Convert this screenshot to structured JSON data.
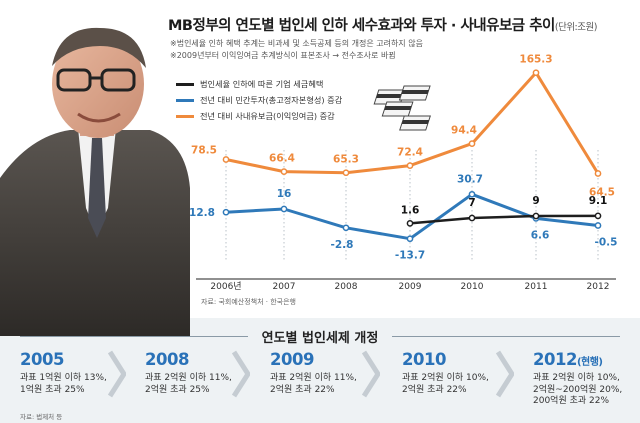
{
  "title": "MB정부의 연도별 법인세 인하 세수효과와 투자 · 사내유보금 추이",
  "title_unit": "(단위:조원)",
  "notes": [
    "※법인세율 인하 혜택 추계는 비과세 및 소득공제 등의 개정은 고려하지 않음",
    "※2009년부터 이익잉여금 추계방식이 표본조사 → 전수조사로 바뀜"
  ],
  "legend": [
    {
      "label": "법인세율 인하에 따른 기업 세금혜택",
      "color": "#1e1e1e"
    },
    {
      "label": "전년 대비 민간투자(총고정자본형성) 증감",
      "color": "#2f79b9"
    },
    {
      "label": "전년 대비 사내유보금(이익잉여금) 증감",
      "color": "#ef8a3c"
    }
  ],
  "source_chart": "자료: 국회예산정책처 · 한국은행",
  "chart_data": {
    "type": "line",
    "x": [
      "2006년",
      "2007",
      "2008",
      "2009",
      "2010",
      "2011",
      "2012"
    ],
    "series": [
      {
        "name": "전년 대비 사내유보금(이익잉여금) 증감",
        "color": "#ef8a3c",
        "x": [
          "2006년",
          "2007",
          "2008",
          "2009",
          "2010",
          "2011",
          "2012"
        ],
        "values": [
          78.5,
          66.4,
          65.3,
          72.4,
          94.4,
          165.3,
          64.5
        ],
        "labels": [
          "78.5",
          "66.4",
          "65.3",
          "72.4",
          "94.4",
          "165.3",
          "64.5"
        ]
      },
      {
        "name": "전년 대비 민간투자(총고정자본형성) 증감",
        "color": "#2f79b9",
        "x": [
          "2006년",
          "2007",
          "2008",
          "2009",
          "2010",
          "2011",
          "2012"
        ],
        "values": [
          12.8,
          16,
          -2.8,
          -13.7,
          30.7,
          6.6,
          -0.5
        ],
        "labels": [
          "12.8",
          "16",
          "-2.8",
          "-13.7",
          "30.7",
          "6.6",
          "-0.5"
        ]
      },
      {
        "name": "법인세율 인하에 따른 기업 세금혜택",
        "color": "#1e1e1e",
        "x": [
          "2009",
          "2010",
          "2011",
          "2012"
        ],
        "values": [
          1.6,
          7,
          9,
          9.1
        ],
        "labels": [
          "1.6",
          "7",
          "9",
          "9.1"
        ]
      }
    ],
    "grid": "vertical dotted lines at each year",
    "legend_position": "top"
  },
  "section_title": "연도별 법인세제 개정",
  "revisions": [
    {
      "year": "2005",
      "current": "",
      "lines": [
        "과표 1억원 이하 13%,",
        "1억원 초과 25%"
      ]
    },
    {
      "year": "2008",
      "current": "",
      "lines": [
        "과표 2억원 이하 11%,",
        "2억원 초과 25%"
      ]
    },
    {
      "year": "2009",
      "current": "",
      "lines": [
        "과표 2억원 이하 11%,",
        "2억원 초과 22%"
      ]
    },
    {
      "year": "2010",
      "current": "",
      "lines": [
        "과표 2억원 이하 10%,",
        "2억원 초과 22%"
      ]
    },
    {
      "year": "2012",
      "current": "(현행)",
      "lines": [
        "과표 2억원 이하 10%,",
        "2억원~200억원 20%,",
        "200억원 초과 22%"
      ]
    }
  ],
  "source_bottom": "자료: 법제처 등"
}
